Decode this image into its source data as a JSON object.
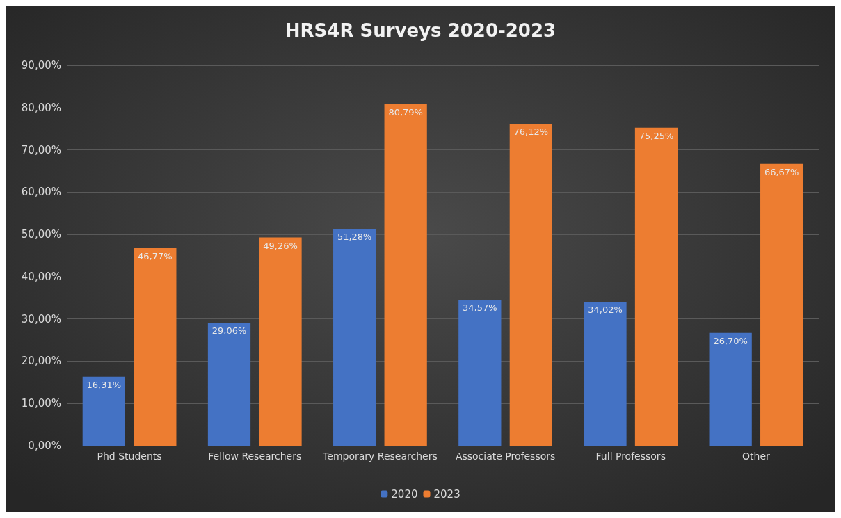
{
  "chart_data": {
    "type": "bar",
    "title": "HRS4R Surveys 2020-2023",
    "categories": [
      "Phd Students",
      "Fellow Researchers",
      "Temporary Researchers",
      "Associate Professors",
      "Full Professors",
      "Other"
    ],
    "series": [
      {
        "name": "2020",
        "color": "#4472c4",
        "values": [
          16.31,
          29.06,
          51.28,
          34.57,
          34.02,
          26.7
        ],
        "value_labels": [
          "16,31%",
          "29,06%",
          "51,28%",
          "34,57%",
          "34,02%",
          "26,70%"
        ]
      },
      {
        "name": "2023",
        "color": "#ed7d31",
        "values": [
          46.77,
          49.26,
          80.79,
          76.12,
          75.25,
          66.67
        ],
        "value_labels": [
          "46,77%",
          "49,26%",
          "80,79%",
          "76,12%",
          "75,25%",
          "66,67%"
        ]
      }
    ],
    "ylim": [
      0,
      90
    ],
    "yticks": [
      {
        "value": 0,
        "label": "0,00%"
      },
      {
        "value": 10,
        "label": "10,00%"
      },
      {
        "value": 20,
        "label": "20,00%"
      },
      {
        "value": 30,
        "label": "30,00%"
      },
      {
        "value": 40,
        "label": "40,00%"
      },
      {
        "value": 50,
        "label": "50,00%"
      },
      {
        "value": 60,
        "label": "60,00%"
      },
      {
        "value": 70,
        "label": "70,00%"
      },
      {
        "value": 80,
        "label": "80,00%"
      },
      {
        "value": 90,
        "label": "90,00%"
      }
    ],
    "grid": "y",
    "legend": "bottom"
  }
}
